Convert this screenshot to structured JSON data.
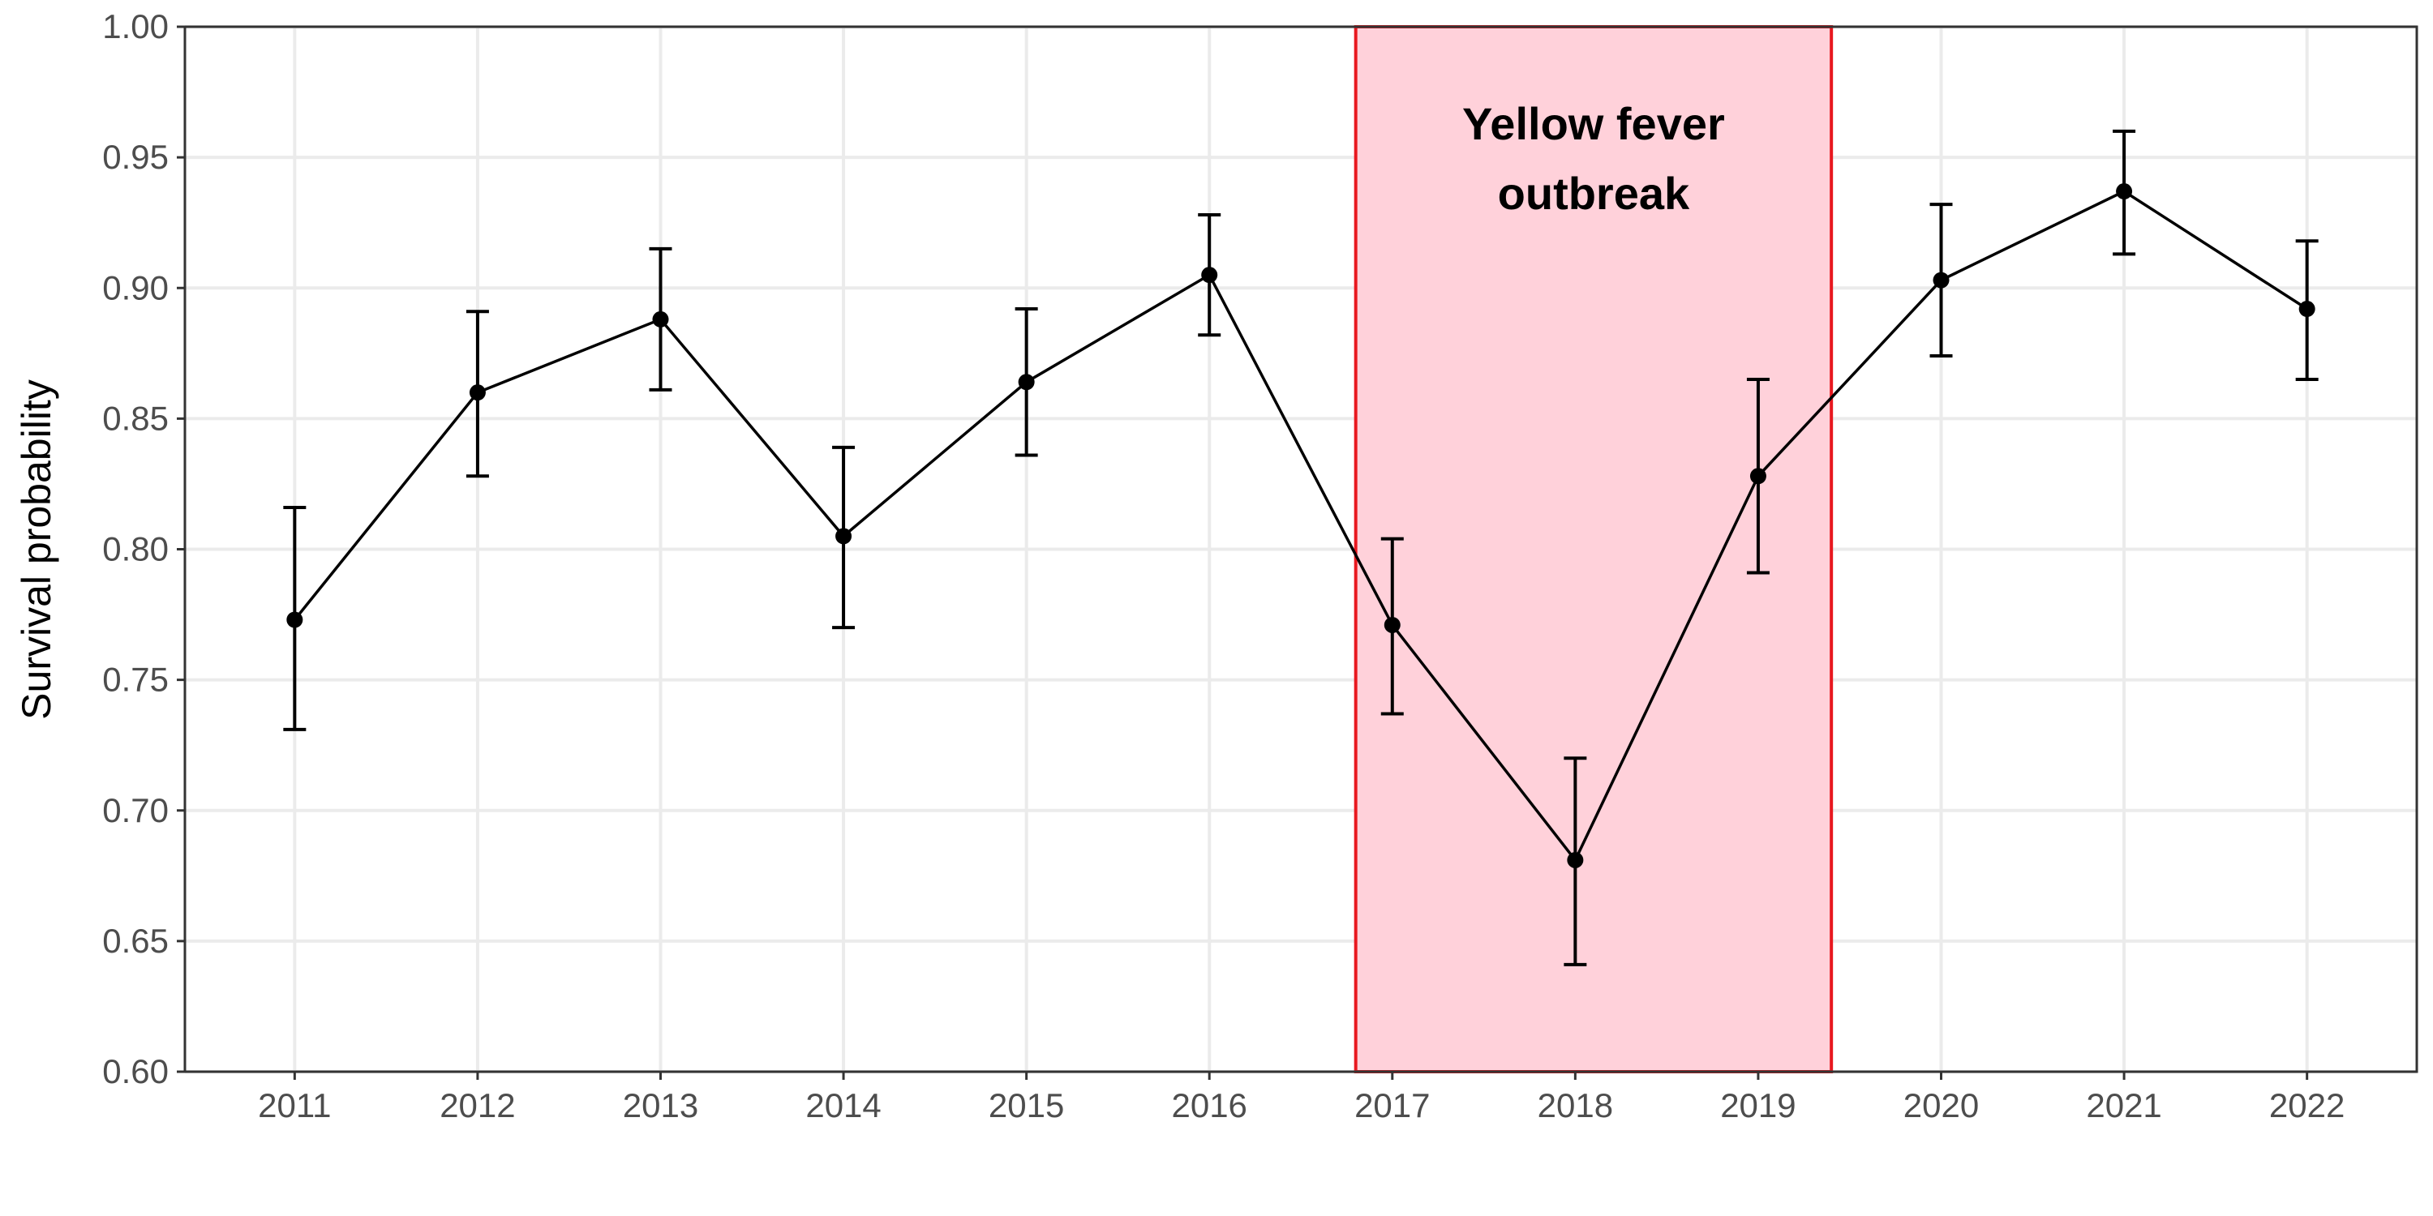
{
  "chart_data": {
    "type": "line",
    "title": "",
    "xlabel": "",
    "ylabel": "Survival probability",
    "ylim": [
      0.6,
      1.0
    ],
    "y_ticks": [
      "0.60",
      "0.65",
      "0.70",
      "0.75",
      "0.80",
      "0.85",
      "0.90",
      "0.95",
      "1.00"
    ],
    "categories": [
      "2011",
      "2012",
      "2013",
      "2014",
      "2015",
      "2016",
      "2017",
      "2018",
      "2019",
      "2020",
      "2021",
      "2022"
    ],
    "series": [
      {
        "values": [
          0.773,
          0.86,
          0.888,
          0.805,
          0.864,
          0.905,
          0.771,
          0.681,
          0.828,
          0.903,
          0.937,
          0.892
        ],
        "lower": [
          0.731,
          0.828,
          0.861,
          0.77,
          0.836,
          0.882,
          0.737,
          0.641,
          0.791,
          0.874,
          0.913,
          0.865
        ],
        "upper": [
          0.816,
          0.891,
          0.915,
          0.839,
          0.892,
          0.928,
          0.804,
          0.72,
          0.865,
          0.932,
          0.96,
          0.918
        ]
      }
    ],
    "annotation": {
      "text_lines": [
        "Yellow fever",
        "outbreak"
      ],
      "x_start": 2016.8,
      "x_end": 2019.4,
      "fill_color": "#ffd1da",
      "border_color": "#e8181f"
    },
    "grid": true,
    "legend": "none",
    "colors": {
      "series": "#000000",
      "grid": "#ebebeb",
      "tick_label": "#4d4d4d"
    }
  }
}
